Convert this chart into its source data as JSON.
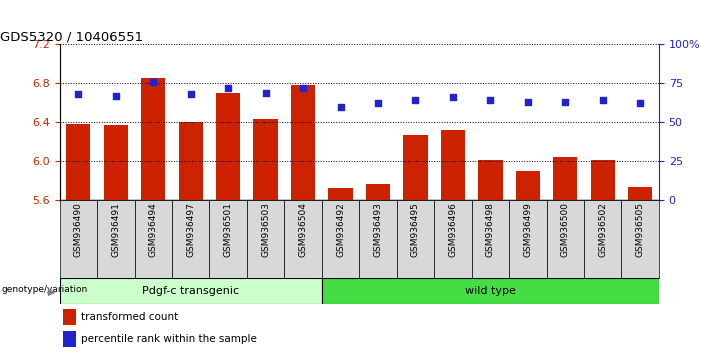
{
  "title": "GDS5320 / 10406551",
  "categories": [
    "GSM936490",
    "GSM936491",
    "GSM936494",
    "GSM936497",
    "GSM936501",
    "GSM936503",
    "GSM936504",
    "GSM936492",
    "GSM936493",
    "GSM936495",
    "GSM936496",
    "GSM936498",
    "GSM936499",
    "GSM936500",
    "GSM936502",
    "GSM936505"
  ],
  "bar_values": [
    6.38,
    6.37,
    6.85,
    6.4,
    6.7,
    6.43,
    6.78,
    5.72,
    5.76,
    6.27,
    6.32,
    6.01,
    5.9,
    6.04,
    6.01,
    5.73
  ],
  "dot_values": [
    68,
    67,
    76,
    68,
    72,
    69,
    72,
    60,
    62,
    64,
    66,
    64,
    63,
    63,
    64,
    62
  ],
  "bar_color": "#cc2200",
  "dot_color": "#2222cc",
  "ylim_left": [
    5.6,
    7.2
  ],
  "ylim_right": [
    0,
    100
  ],
  "yticks_left": [
    5.6,
    6.0,
    6.4,
    6.8,
    7.2
  ],
  "yticks_right": [
    0,
    25,
    50,
    75,
    100
  ],
  "ytick_labels_right": [
    "0",
    "25",
    "50",
    "75",
    "100%"
  ],
  "group1_label": "Pdgf-c transgenic",
  "group2_label": "wild type",
  "group1_count": 7,
  "group2_count": 9,
  "legend_bar": "transformed count",
  "legend_dot": "percentile rank within the sample",
  "genotype_label": "genotype/variation",
  "group1_color": "#ccffcc",
  "group2_color": "#44dd44",
  "xtick_bg": "#d8d8d8",
  "bg_color": "#ffffff",
  "grid_color": "#000000"
}
